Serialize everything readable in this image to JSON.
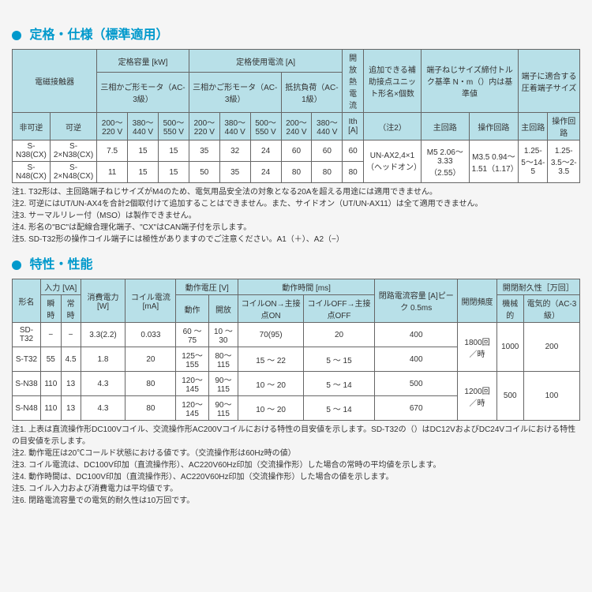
{
  "section1": {
    "title": "定格・仕様（標準適用）",
    "headers": {
      "h1": "電磁接触器",
      "h2": "定格容量 [kW]",
      "h3": "定格使用電流 [A]",
      "h4": "開放熱電流",
      "h5": "追加できる補助接点ユニット形名×個数",
      "h6": "端子ねじサイズ締付トルク基準 N・m（）内は基準値",
      "h7": "端子に適合する圧着端子サイズ",
      "sub1": "三相かご形モータ（AC-3級）",
      "sub2": "三相かご形モータ（AC-3級）",
      "sub3": "抵抗負荷（AC-1級）",
      "nonrev": "非可逆",
      "rev": "可逆",
      "ith": "Ith [A]",
      "note2": "（注2）",
      "main": "主回路",
      "op": "操作回路",
      "v200": "200〜220 V",
      "v380": "380〜440 V",
      "v500": "500〜550 V",
      "v240": "200〜240 V",
      "v440": "380〜440 V"
    },
    "rows": [
      {
        "c": [
          "S-N38(CX)",
          "S-2×N38(CX)",
          "7.5",
          "15",
          "15",
          "35",
          "32",
          "24",
          "60",
          "60",
          "60",
          "UN-AX2,4×1（ヘッドオン）",
          "M5 2.06～3.33（2.55）",
          "M3.5 0.94～1.51（1.17）",
          "1.25-5〜14-5",
          "1.25-3.5〜2-3.5"
        ]
      },
      {
        "c": [
          "S-N48(CX)",
          "S-2×N48(CX)",
          "11",
          "15",
          "15",
          "50",
          "35",
          "24",
          "80",
          "80",
          "80"
        ]
      }
    ],
    "notes": [
      "注1. T32形は、主回路端子ねじサイズがM4のため、電気用品安全法の対象となる20Aを超える用途には適用できません。",
      "注2. 可逆にはUT/UN-AX4を合計2個取付けて追加することはできません。また、サイドオン（UT/UN-AX11）は全て適用できません。",
      "注3. サーマルリレー付（MSO）は製作できません。",
      "注4. 形名の\"BC\"は配線合理化端子、\"CX\"はCAN端子付を示します。",
      "注5. SD-T32形の操作コイル端子には極性がありますのでご注意ください。A1（＋）、A2（−）"
    ]
  },
  "section2": {
    "title": "特性・性能",
    "headers": {
      "h1": "形名",
      "h2": "入力 [VA]",
      "h3": "消費電力 [W]",
      "h4": "コイル電流 [mA]",
      "h5": "動作電圧 [V]",
      "h6": "動作時間 [ms]",
      "h7": "閉路電流容量 [A]ピーク 0.5ms",
      "h8": "開閉頻度",
      "h9": "開閉耐久性［万回］",
      "inst": "瞬時",
      "cont": "常時",
      "op": "動作",
      "rel": "開放",
      "on": "コイルON→主接点ON",
      "off": "コイルOFF→主接点OFF",
      "mech": "機械的",
      "elec": "電気的（AC-3級）"
    },
    "rows": [
      {
        "c": [
          "SD-T32",
          "−",
          "−",
          "3.3(2.2)",
          "0.033",
          "60 ～ 75",
          "10 ～ 30",
          "70(95)",
          "20",
          "400",
          "1800回／時",
          "1000",
          "200"
        ]
      },
      {
        "c": [
          "S-T32",
          "55",
          "4.5",
          "1.8",
          "20",
          "125～155",
          "80～115",
          "15 ～ 22",
          "5 ～ 15",
          "400"
        ]
      },
      {
        "c": [
          "S-N38",
          "110",
          "13",
          "4.3",
          "80",
          "120～145",
          "90～115",
          "10 ～ 20",
          "5 ～ 14",
          "500",
          "1200回／時",
          "500",
          "100"
        ]
      },
      {
        "c": [
          "S-N48",
          "110",
          "13",
          "4.3",
          "80",
          "120～145",
          "90～115",
          "10 ～ 20",
          "5 ～ 14",
          "670"
        ]
      }
    ],
    "notes": [
      "注1. 上表は直流操作形DC100Vコイル、交流操作形AC200Vコイルにおける特性の目安値を示します。SD-T32の（）はDC12VおよびDC24Vコイルにおける特性の目安値を示します。",
      "注2. 動作電圧は20℃コールド状態における値です。（交流操作形は60Hz時の値）",
      "注3. コイル電流は、DC100V印加（直流操作形）、AC220V60Hz印加（交流操作形）した場合の常時の平均値を示します。",
      "注4. 動作時間は、DC100V印加（直流操作形）、AC220V60Hz印加（交流操作形）した場合の値を示します。",
      "注5. コイル入力および消費電力は平均値です。",
      "注6. 閉路電流容量での電気的耐久性は10万回です。"
    ]
  }
}
